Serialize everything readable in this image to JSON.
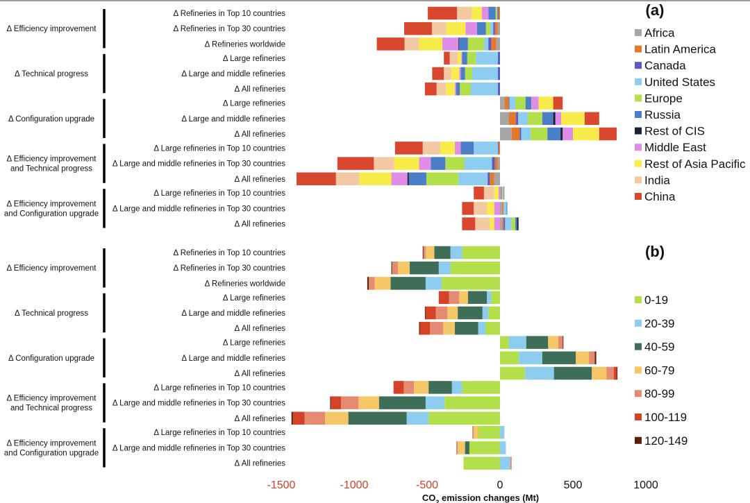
{
  "chart_data": [
    {
      "type": "bar",
      "orientation": "horizontal",
      "stacked": true,
      "panel_label": "(a)",
      "legend": [
        {
          "name": "Africa",
          "color": "#a6a6a6"
        },
        {
          "name": "Latin America",
          "color": "#e5792b"
        },
        {
          "name": "Canada",
          "color": "#5b5bc8"
        },
        {
          "name": "United States",
          "color": "#8ccdf0"
        },
        {
          "name": "Europe",
          "color": "#b3e04a"
        },
        {
          "name": "Russia",
          "color": "#4a7ec6"
        },
        {
          "name": "Rest of CIS",
          "color": "#1b2233"
        },
        {
          "name": "Middle East",
          "color": "#e08de8"
        },
        {
          "name": "Rest of Asia Pacific",
          "color": "#f8ec4a"
        },
        {
          "name": "India",
          "color": "#f3c9a4"
        },
        {
          "name": "China",
          "color": "#d8472e"
        }
      ],
      "groups": [
        {
          "label_lines": [
            "Δ Efficiency improvement"
          ],
          "rows": [
            {
              "label": "Δ Refineries in Top 10 countries",
              "values": [
                0,
                -10,
                -8,
                0,
                -12,
                -50,
                0,
                -45,
                -70,
                -100,
                -200
              ]
            },
            {
              "label": "Δ Refineries in Top 30 countries",
              "values": [
                -15,
                -20,
                -12,
                -20,
                -30,
                -60,
                0,
                -80,
                -130,
                -100,
                -190
              ]
            },
            {
              "label": "Δ Refineries worldwide",
              "values": [
                -25,
                -35,
                -20,
                -30,
                -110,
                -60,
                -5,
                -110,
                -160,
                -100,
                -190
              ]
            }
          ]
        },
        {
          "label_lines": [
            "Δ Technical progress"
          ],
          "rows": [
            {
              "label": "Δ Large refineries",
              "values": [
                0,
                0,
                -15,
                -150,
                -60,
                -35,
                0,
                -5,
                -25,
                -55,
                -40
              ]
            },
            {
              "label": "Δ Large and middle refineries",
              "values": [
                0,
                0,
                -15,
                -175,
                -50,
                -30,
                0,
                -10,
                -55,
                -50,
                -80
              ]
            },
            {
              "label": "Δ All refineries",
              "values": [
                0,
                0,
                -15,
                -185,
                -75,
                -25,
                0,
                -10,
                -60,
                -65,
                -80
              ]
            }
          ]
        },
        {
          "label_lines": [
            "Δ Configuration upgrade"
          ],
          "rows": [
            {
              "label": "Δ Large refineries",
              "values": [
                30,
                30,
                5,
                40,
                70,
                40,
                0,
                50,
                100,
                0,
                65
              ]
            },
            {
              "label": "Δ Large and middle refineries",
              "values": [
                60,
                50,
                15,
                65,
                100,
                75,
                15,
                40,
                160,
                0,
                100
              ]
            },
            {
              "label": "Δ All refineries",
              "values": [
                80,
                55,
                10,
                65,
                115,
                90,
                15,
                70,
                180,
                0,
                120
              ]
            }
          ]
        },
        {
          "label_lines": [
            "Δ Efficiency improvement",
            "and Technical progress"
          ],
          "rows": [
            {
              "label": "Δ Large refineries in Top 10 countries",
              "values": [
                0,
                -10,
                -5,
                -165,
                0,
                -90,
                0,
                -40,
                -100,
                -120,
                -190
              ]
            },
            {
              "label": "Δ Large and middle refineries in Top 30 countries",
              "values": [
                -15,
                -20,
                -20,
                -190,
                -130,
                -100,
                0,
                -80,
                -170,
                -140,
                -250
              ]
            },
            {
              "label": "Δ All refineries",
              "values": [
                -40,
                -30,
                -15,
                -200,
                -220,
                -120,
                -10,
                -110,
                -220,
                -160,
                -270
              ]
            }
          ]
        },
        {
          "label_lines": [
            "Δ Efficiency improvement",
            "and Configuration upgrade"
          ],
          "rows": [
            {
              "label": "Δ Large refineries in Top 10 countries",
              "values": [
                10,
                5,
                0,
                5,
                5,
                5,
                0,
                -10,
                -30,
                -70,
                -70
              ]
            },
            {
              "label": "Δ Large and middle refineries in Top 30 countries",
              "values": [
                15,
                10,
                0,
                20,
                0,
                5,
                0,
                -40,
                -50,
                -90,
                -80
              ]
            },
            {
              "label": "Δ All refineries",
              "values": [
                15,
                10,
                10,
                45,
                25,
                12,
                10,
                -40,
                -30,
                -100,
                -90
              ]
            }
          ]
        }
      ]
    },
    {
      "type": "bar",
      "orientation": "horizontal",
      "stacked": true,
      "panel_label": "(b)",
      "legend": [
        {
          "name": "0-19",
          "color": "#b3e04a"
        },
        {
          "name": "20-39",
          "color": "#8ccdf0"
        },
        {
          "name": "40-59",
          "color": "#3e6e57"
        },
        {
          "name": "60-79",
          "color": "#f5c766"
        },
        {
          "name": "80-99",
          "color": "#e58a73"
        },
        {
          "name": "100-119",
          "color": "#d44328"
        },
        {
          "name": "120-149",
          "color": "#5a200c"
        }
      ],
      "groups": [
        {
          "label_lines": [
            "Δ Efficiency improvement"
          ],
          "rows": [
            {
              "label": "Δ Refineries in Top 10 countries",
              "values": [
                -260,
                -80,
                -110,
                -60,
                -15,
                0,
                -5
              ]
            },
            {
              "label": "Δ Refineries in Top 30 countries",
              "values": [
                -340,
                -80,
                -200,
                -80,
                -40,
                0,
                -5
              ]
            },
            {
              "label": "Δ Refineries worldwide",
              "values": [
                -400,
                -110,
                -240,
                -110,
                -40,
                0,
                -10
              ]
            }
          ]
        },
        {
          "label_lines": [
            "Δ Technical progress"
          ],
          "rows": [
            {
              "label": "Δ Large refineries",
              "values": [
                -60,
                -30,
                -130,
                -60,
                -70,
                -70,
                0
              ]
            },
            {
              "label": "Δ Large and middle refineries",
              "values": [
                -80,
                -40,
                -170,
                -70,
                -80,
                -70,
                -5
              ]
            },
            {
              "label": "Δ All refineries",
              "values": [
                -100,
                -50,
                -160,
                -80,
                -90,
                -70,
                -5
              ]
            }
          ]
        },
        {
          "label_lines": [
            "Δ Configuration upgrade"
          ],
          "rows": [
            {
              "label": "Δ Large refineries",
              "values": [
                60,
                120,
                150,
                70,
                30,
                0,
                5
              ]
            },
            {
              "label": "Δ Large and middle refineries",
              "values": [
                130,
                160,
                230,
                90,
                40,
                0,
                10
              ]
            },
            {
              "label": "Δ All refineries",
              "values": [
                170,
                200,
                260,
                100,
                50,
                20,
                5
              ]
            }
          ]
        },
        {
          "label_lines": [
            "Δ Efficiency improvement",
            "and Technical progress"
          ],
          "rows": [
            {
              "label": "Δ Large refineries in Top 10 countries",
              "values": [
                -260,
                -70,
                -160,
                -100,
                -70,
                -70,
                0
              ]
            },
            {
              "label": "Δ Large and middle refineries in Top 30 countries",
              "values": [
                -380,
                -130,
                -320,
                -140,
                -120,
                -70,
                -5
              ]
            },
            {
              "label": "Δ All refineries",
              "values": [
                -490,
                -150,
                -400,
                -160,
                -140,
                -80,
                -10
              ]
            }
          ]
        },
        {
          "label_lines": [
            "Δ Efficiency improvement",
            "and Configuration upgrade"
          ],
          "rows": [
            {
              "label": "Δ Large refineries in Top 10 countries",
              "values": [
                -150,
                30,
                0,
                -30,
                -10,
                0,
                0
              ]
            },
            {
              "label": "Δ Large and middle refineries in Top 30 countries",
              "values": [
                -210,
                40,
                -30,
                -50,
                -10,
                0,
                0
              ]
            },
            {
              "label": "Δ All refineries",
              "values": [
                -250,
                70,
                0,
                0,
                10,
                0,
                0
              ]
            }
          ]
        }
      ]
    }
  ],
  "axis": {
    "xlim": [
      -1500,
      1000
    ],
    "ticks": [
      -1500,
      -1000,
      -500,
      0,
      500,
      1000
    ],
    "tick_labels": [
      "-1500",
      "-1000",
      "-500",
      "0",
      "500",
      "1000"
    ],
    "xlabel_main": "CO",
    "xlabel_sub": "2",
    "xlabel_rest": " emission changes (Mt)"
  },
  "colors": {
    "negative_tick": "#d23f2a",
    "positive_tick": "#111111",
    "separator": "#9a9a9a"
  }
}
